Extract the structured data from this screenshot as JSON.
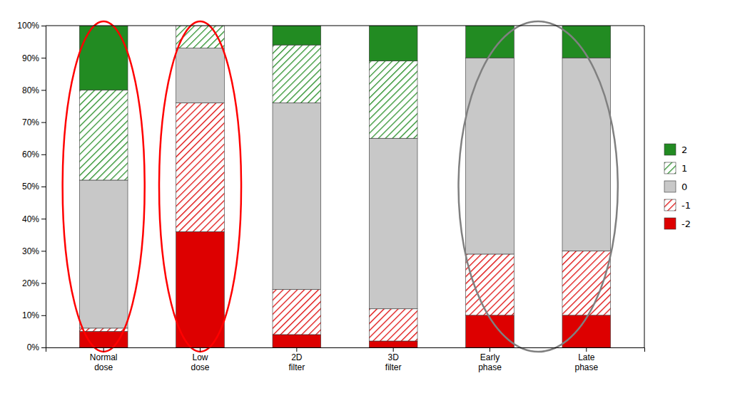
{
  "chart_data": {
    "type": "bar",
    "stacked": true,
    "categories": [
      "Normal\ndose",
      "Low\ndose",
      "2D\nfilter",
      "3D\nfilter",
      "Early\nphase",
      "Late\nphase"
    ],
    "series": [
      {
        "name": "-2",
        "color": "#DD0000",
        "values": [
          5,
          36,
          4,
          2,
          10,
          10
        ]
      },
      {
        "name": "-1",
        "color": "#DD0000",
        "values": [
          1,
          40,
          14,
          10,
          19,
          20
        ]
      },
      {
        "name": "0",
        "color": "#C8C8C8",
        "values": [
          46,
          17,
          58,
          53,
          61,
          60
        ]
      },
      {
        "name": "1",
        "color": "#228B22",
        "values": [
          28,
          7,
          18,
          24,
          0,
          0
        ]
      },
      {
        "name": "2",
        "color": "#228B22",
        "values": [
          20,
          0,
          6,
          11,
          10,
          10
        ]
      }
    ],
    "ylim": [
      0,
      100
    ],
    "yticks": [
      {
        "value": 0,
        "label": "0%"
      },
      {
        "value": 10,
        "label": "10%"
      },
      {
        "value": 20,
        "label": "20%"
      },
      {
        "value": 30,
        "label": "30%"
      },
      {
        "value": 40,
        "label": "40%"
      },
      {
        "value": 50,
        "label": "50%"
      },
      {
        "value": 60,
        "label": "60%"
      },
      {
        "value": 70,
        "label": "70%"
      },
      {
        "value": 80,
        "label": "80%"
      },
      {
        "value": 90,
        "label": "90%"
      },
      {
        "value": 100,
        "label": "100%"
      }
    ],
    "grid": false,
    "legend": "right"
  }
}
